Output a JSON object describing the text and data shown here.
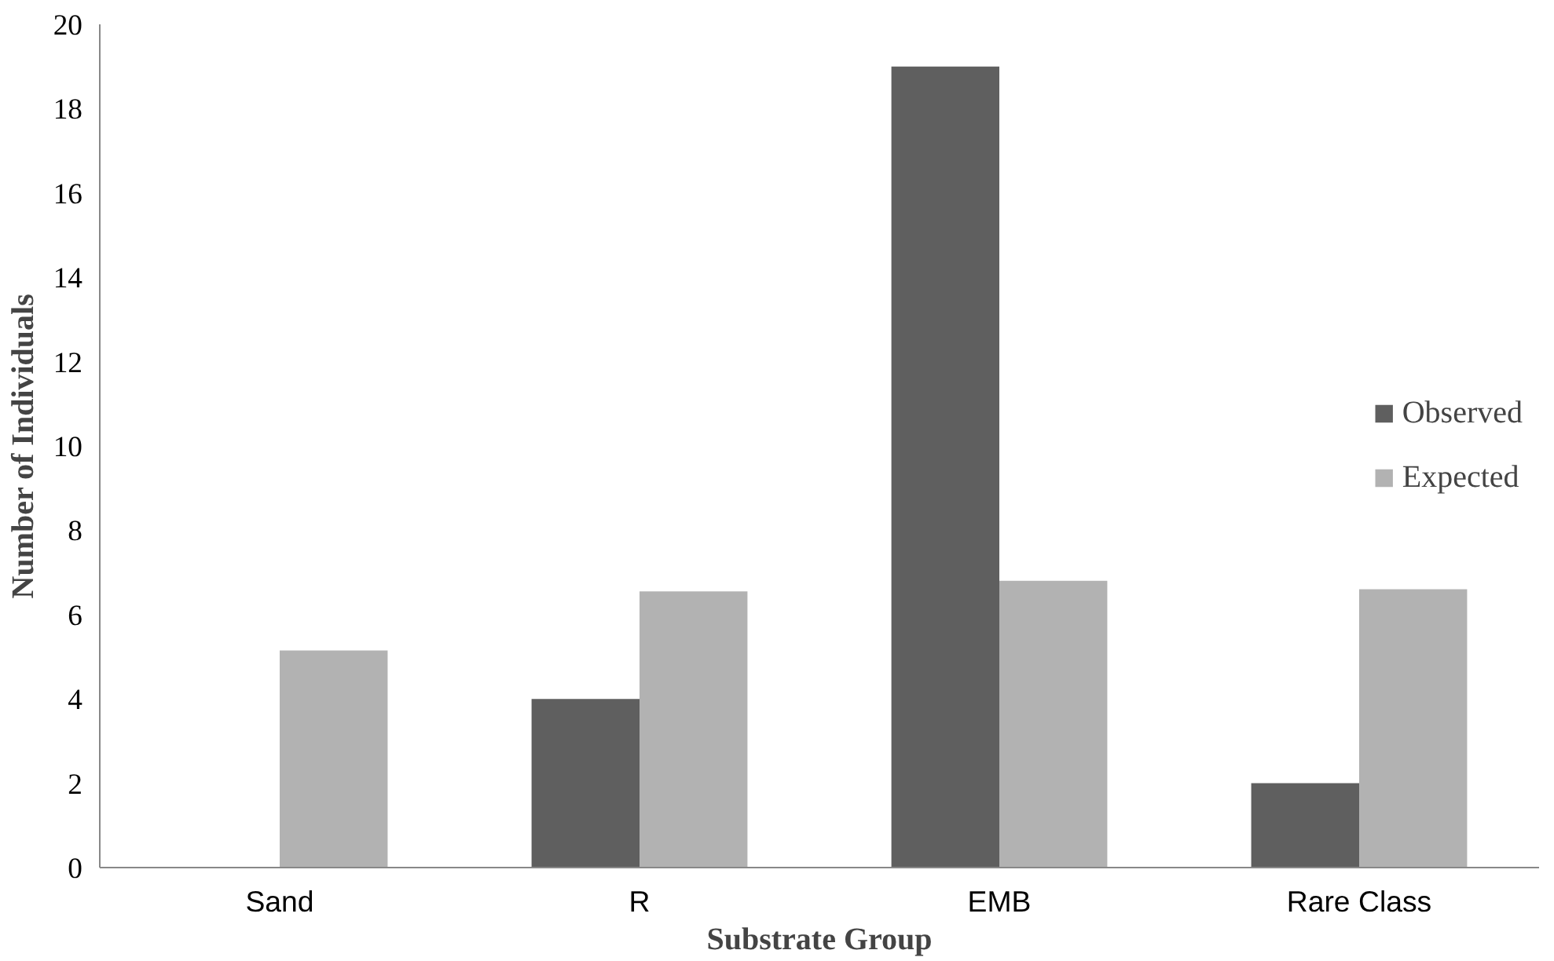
{
  "chart_data": {
    "type": "bar",
    "xlabel": "Substrate Group",
    "ylabel": "Number of Individuals",
    "categories": [
      "Sand",
      "R",
      "EMB",
      "Rare Class"
    ],
    "series": [
      {
        "name": "Observed",
        "color": "#5f5f5f",
        "values": [
          0,
          4,
          19,
          2
        ]
      },
      {
        "name": "Expected",
        "color": "#b2b2b2",
        "values": [
          5.15,
          6.55,
          6.8,
          6.6
        ]
      }
    ],
    "ylim": [
      0,
      20
    ],
    "yticks": [
      0,
      2,
      4,
      6,
      8,
      10,
      12,
      14,
      16,
      18,
      20
    ],
    "grid": false,
    "legend": "right"
  }
}
